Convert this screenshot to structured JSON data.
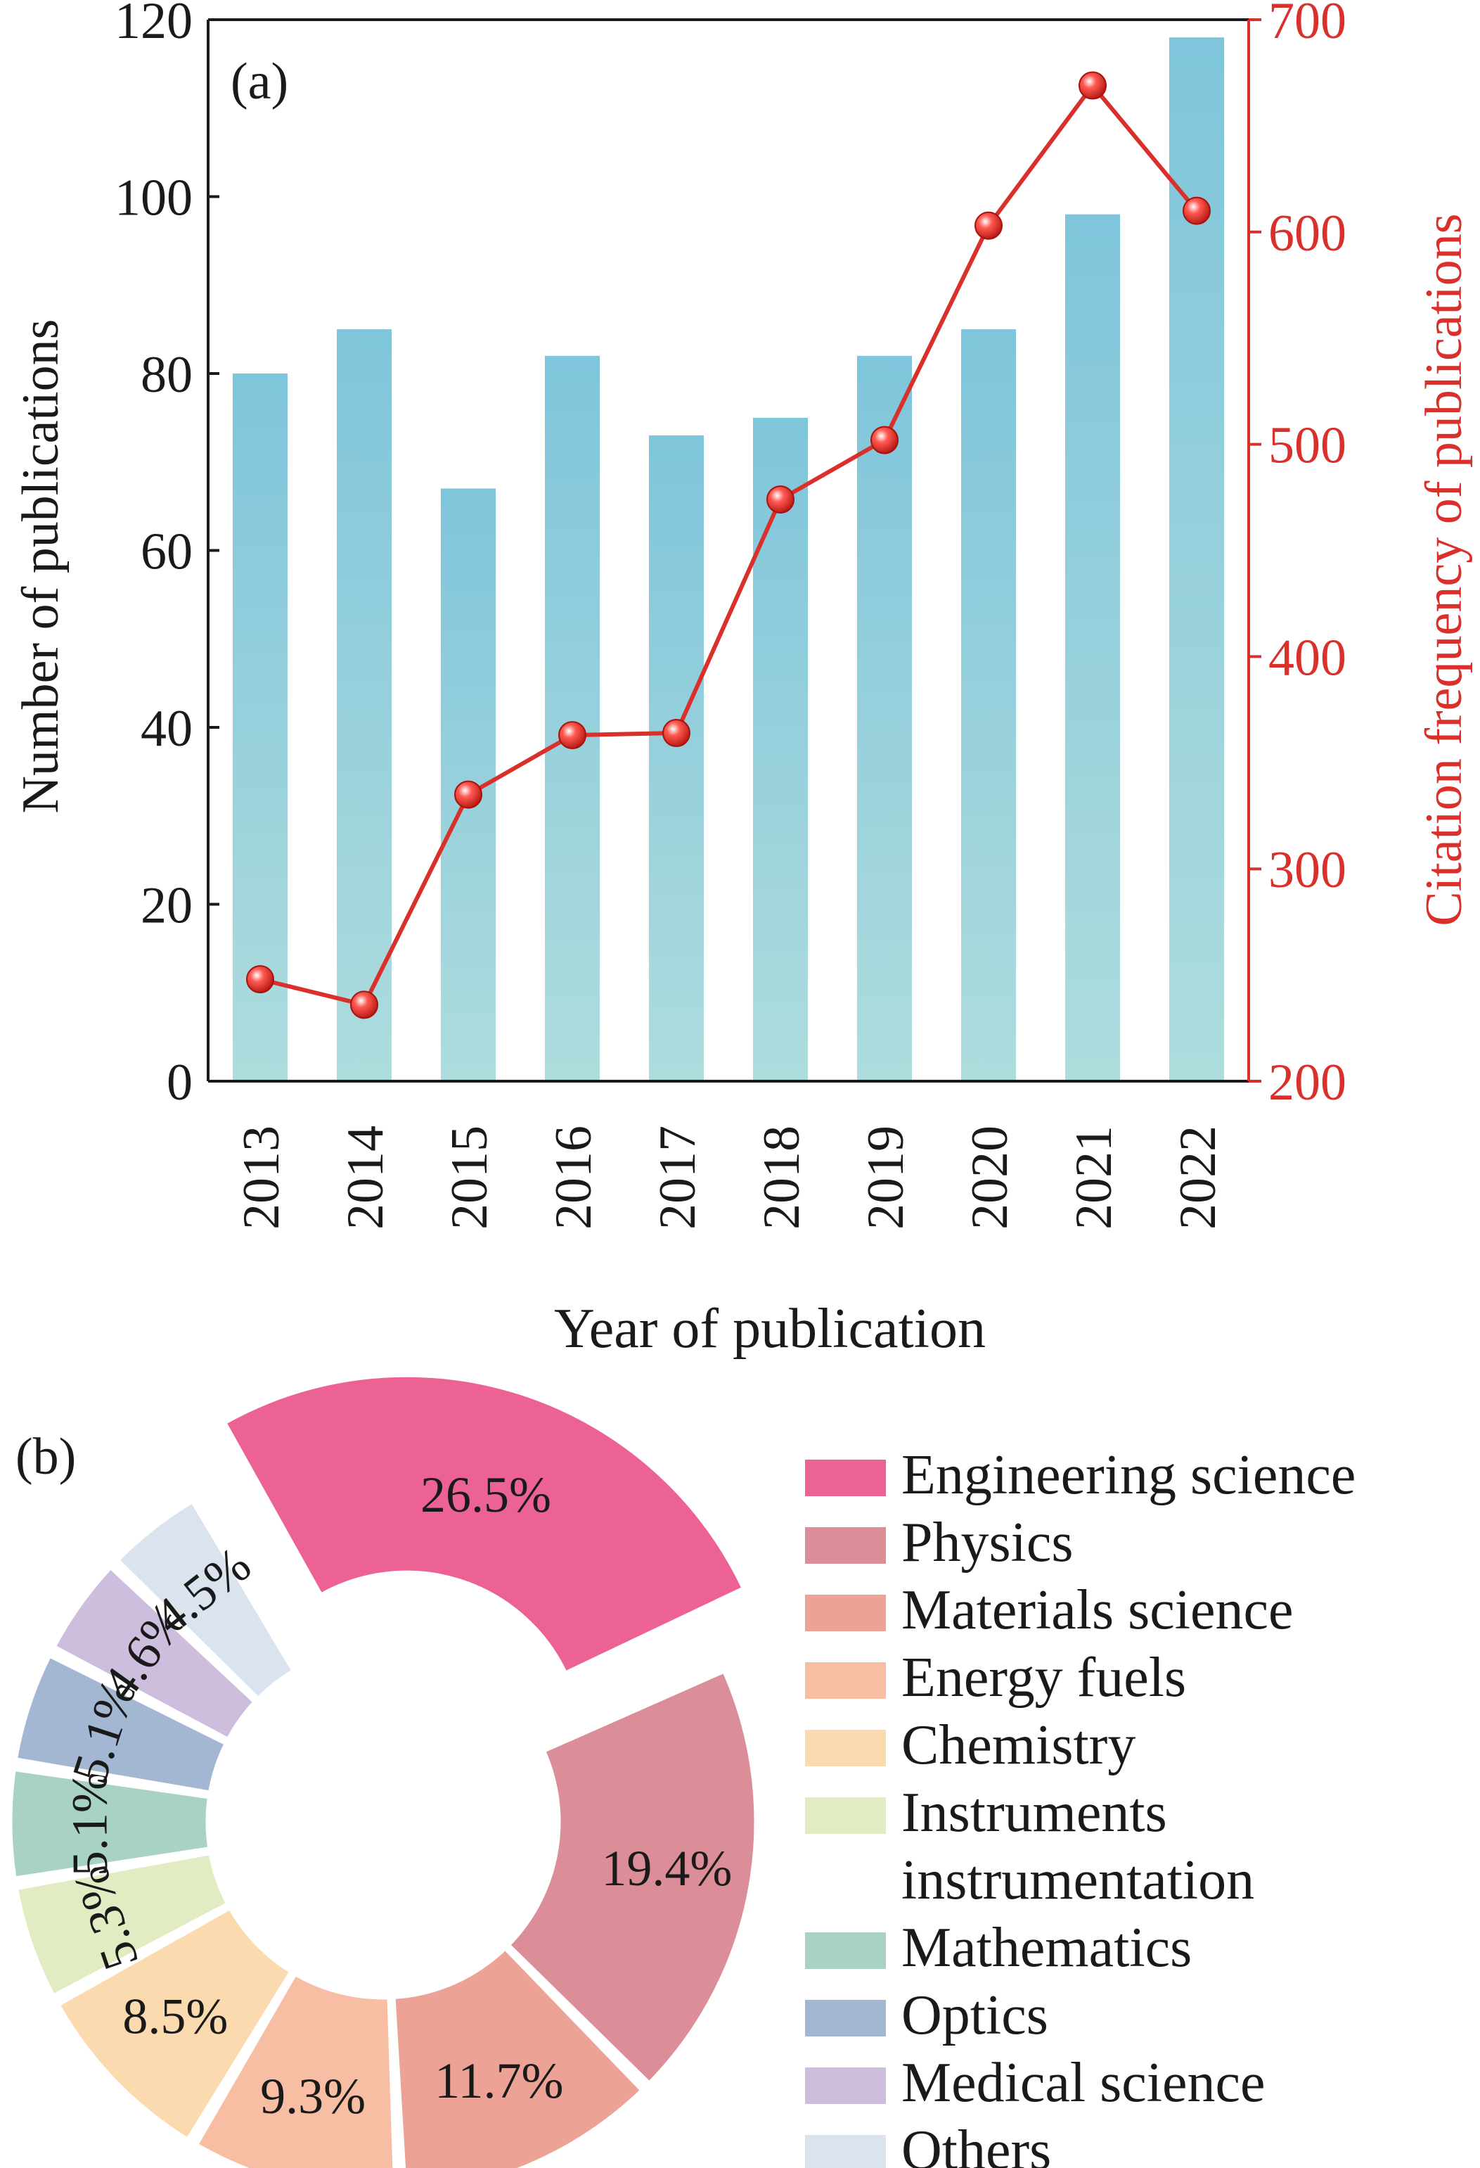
{
  "chart_data": [
    {
      "panel_label": "(a)",
      "type": "bar+line",
      "categories": [
        "2013",
        "2014",
        "2015",
        "2016",
        "2017",
        "2018",
        "2019",
        "2020",
        "2021",
        "2022"
      ],
      "series": [
        {
          "name": "Number of publications",
          "type": "bar",
          "axis": "left",
          "color": "#86c9dc",
          "values": [
            80,
            85,
            67,
            82,
            73,
            75,
            82,
            85,
            98,
            118
          ]
        },
        {
          "name": "Citation frequency of publications",
          "type": "line",
          "axis": "right",
          "color": "#d9302b",
          "values": [
            248,
            236,
            335,
            363,
            364,
            474,
            502,
            603,
            669,
            610
          ]
        }
      ],
      "xlabel": "Year of publication",
      "ylabel_left": "Number of publications",
      "ylabel_right": "Citation frequency of publications",
      "ylim_left": [
        0,
        120
      ],
      "yticks_left": [
        "0",
        "20",
        "40",
        "60",
        "80",
        "100",
        "120"
      ],
      "ylim_right": [
        200,
        700
      ],
      "yticks_right": [
        "200",
        "300",
        "400",
        "500",
        "600",
        "700"
      ]
    },
    {
      "panel_label": "(b)",
      "type": "pie",
      "donut": true,
      "slices": [
        {
          "label": "Engineering science",
          "value": 26.5,
          "text": "26.5%",
          "color": "#ec6294",
          "exploded": true
        },
        {
          "label": "Physics",
          "value": 19.4,
          "text": "19.4%",
          "color": "#dc8e98"
        },
        {
          "label": "Materials science",
          "value": 11.7,
          "text": "11.7%",
          "color": "#eca396"
        },
        {
          "label": "Energy fuels",
          "value": 9.3,
          "text": "9.3%",
          "color": "#f8bea4"
        },
        {
          "label": "Chemistry",
          "value": 8.5,
          "text": "8.5%",
          "color": "#fcdaaf"
        },
        {
          "label": "Instruments\ninstrumentation",
          "value": 5.3,
          "text": "5.3%",
          "color": "#e1ecc2"
        },
        {
          "label": "Mathematics",
          "value": 5.1,
          "text": "5.1%",
          "color": "#a8d3c2"
        },
        {
          "label": "Optics",
          "value": 5.1,
          "text": "5.1%",
          "color": "#a4b7d2"
        },
        {
          "label": "Medical science",
          "value": 4.6,
          "text": "4.6%",
          "color": "#cdbedd"
        },
        {
          "label": "Others",
          "value": 4.5,
          "text": "4.5%",
          "color": "#dbe3ef"
        }
      ]
    }
  ]
}
